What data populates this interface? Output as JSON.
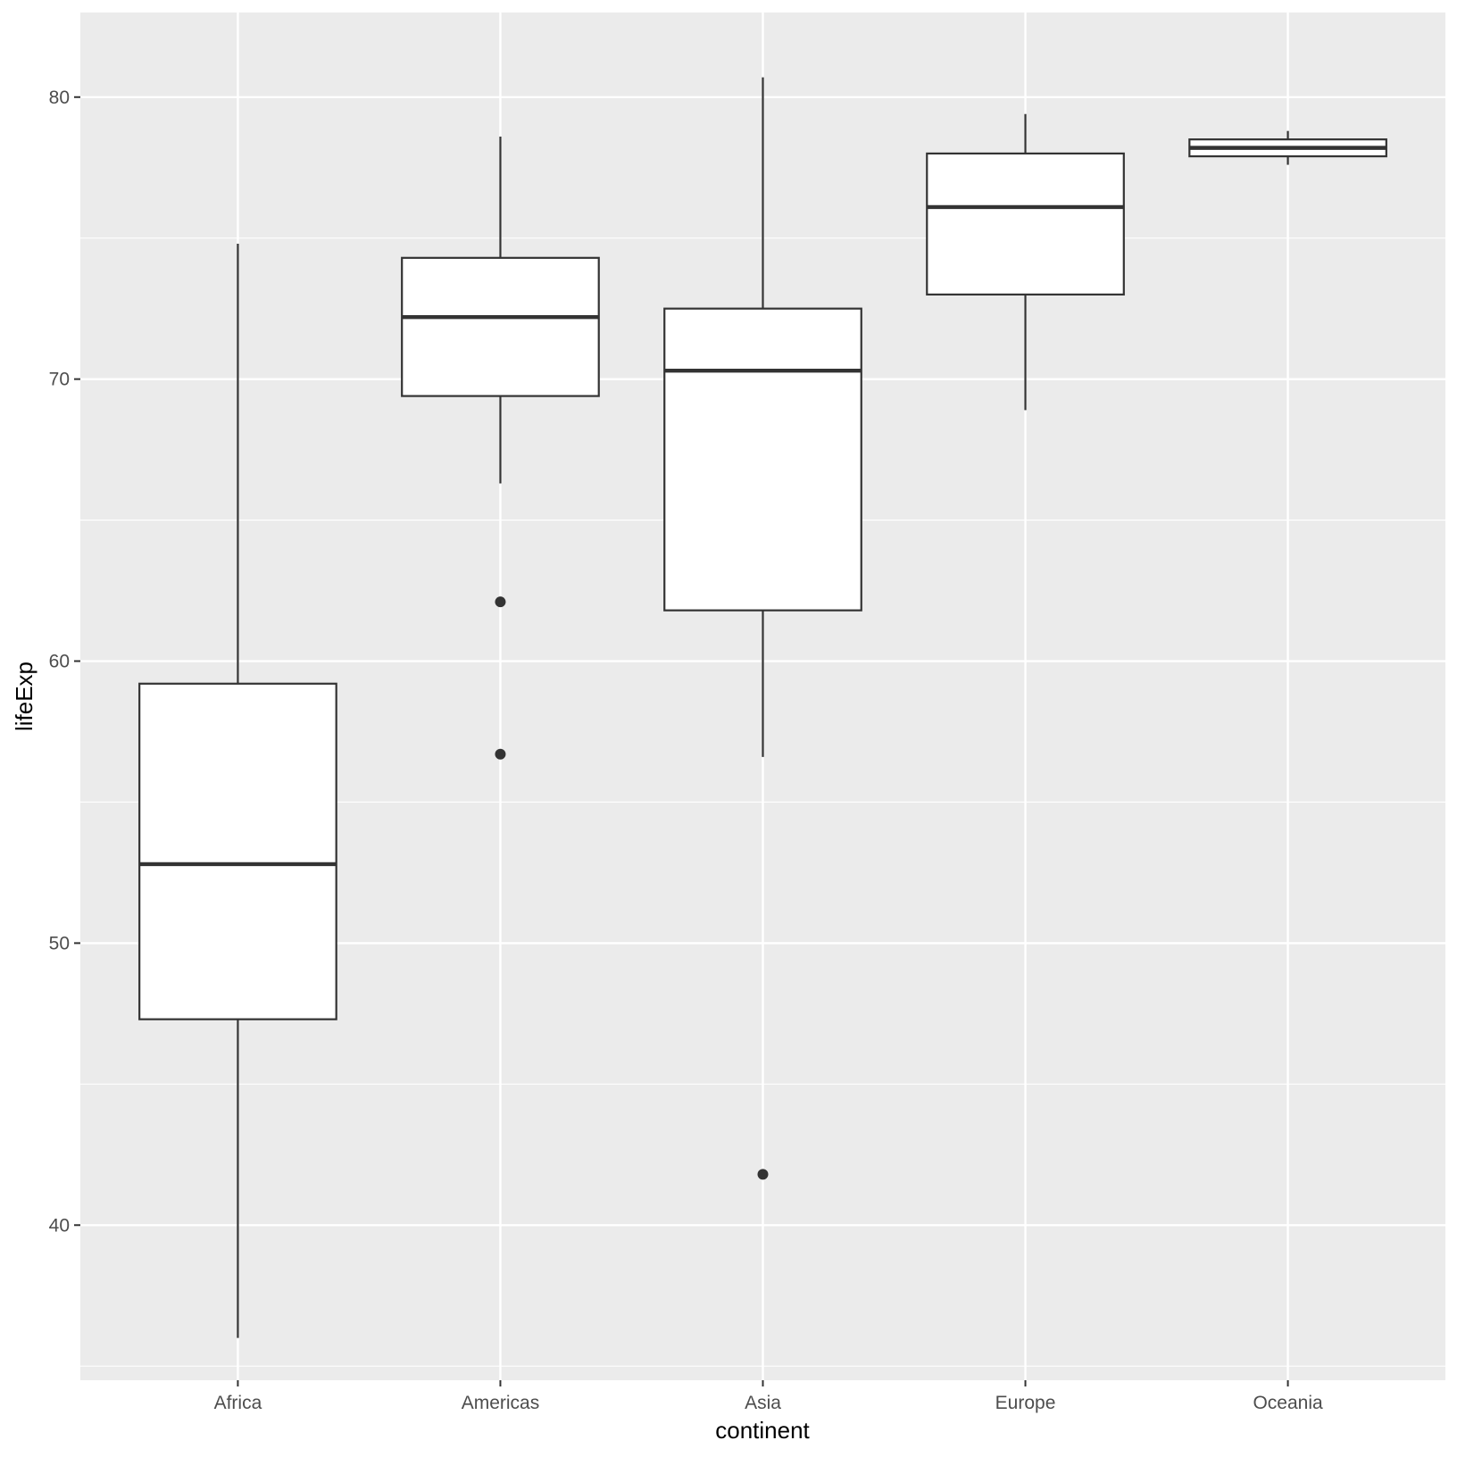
{
  "chart_data": {
    "type": "boxplot",
    "title": "",
    "xlabel": "continent",
    "ylabel": "lifeExp",
    "ylim": [
      34.5,
      83.0
    ],
    "yticks": [
      40,
      50,
      60,
      70,
      80
    ],
    "grid": true,
    "background": "#ebebeb",
    "box_fill": "#ffffff",
    "line_color": "#333333",
    "categories": [
      "Africa",
      "Americas",
      "Asia",
      "Europe",
      "Oceania"
    ],
    "boxes": [
      {
        "category": "Africa",
        "whisker_low": 36.0,
        "q1": 47.3,
        "median": 52.8,
        "q3": 59.2,
        "whisker_high": 74.8,
        "outliers": []
      },
      {
        "category": "Americas",
        "whisker_low": 66.3,
        "q1": 69.4,
        "median": 72.2,
        "q3": 74.3,
        "whisker_high": 78.6,
        "outliers": [
          62.1,
          56.7
        ]
      },
      {
        "category": "Asia",
        "whisker_low": 56.6,
        "q1": 61.8,
        "median": 70.3,
        "q3": 72.5,
        "whisker_high": 80.7,
        "outliers": [
          41.8
        ]
      },
      {
        "category": "Europe",
        "whisker_low": 68.9,
        "q1": 73.0,
        "median": 76.1,
        "q3": 78.0,
        "whisker_high": 79.4,
        "outliers": []
      },
      {
        "category": "Oceania",
        "whisker_low": 77.6,
        "q1": 77.9,
        "median": 78.2,
        "q3": 78.5,
        "whisker_high": 78.8,
        "outliers": []
      }
    ]
  }
}
